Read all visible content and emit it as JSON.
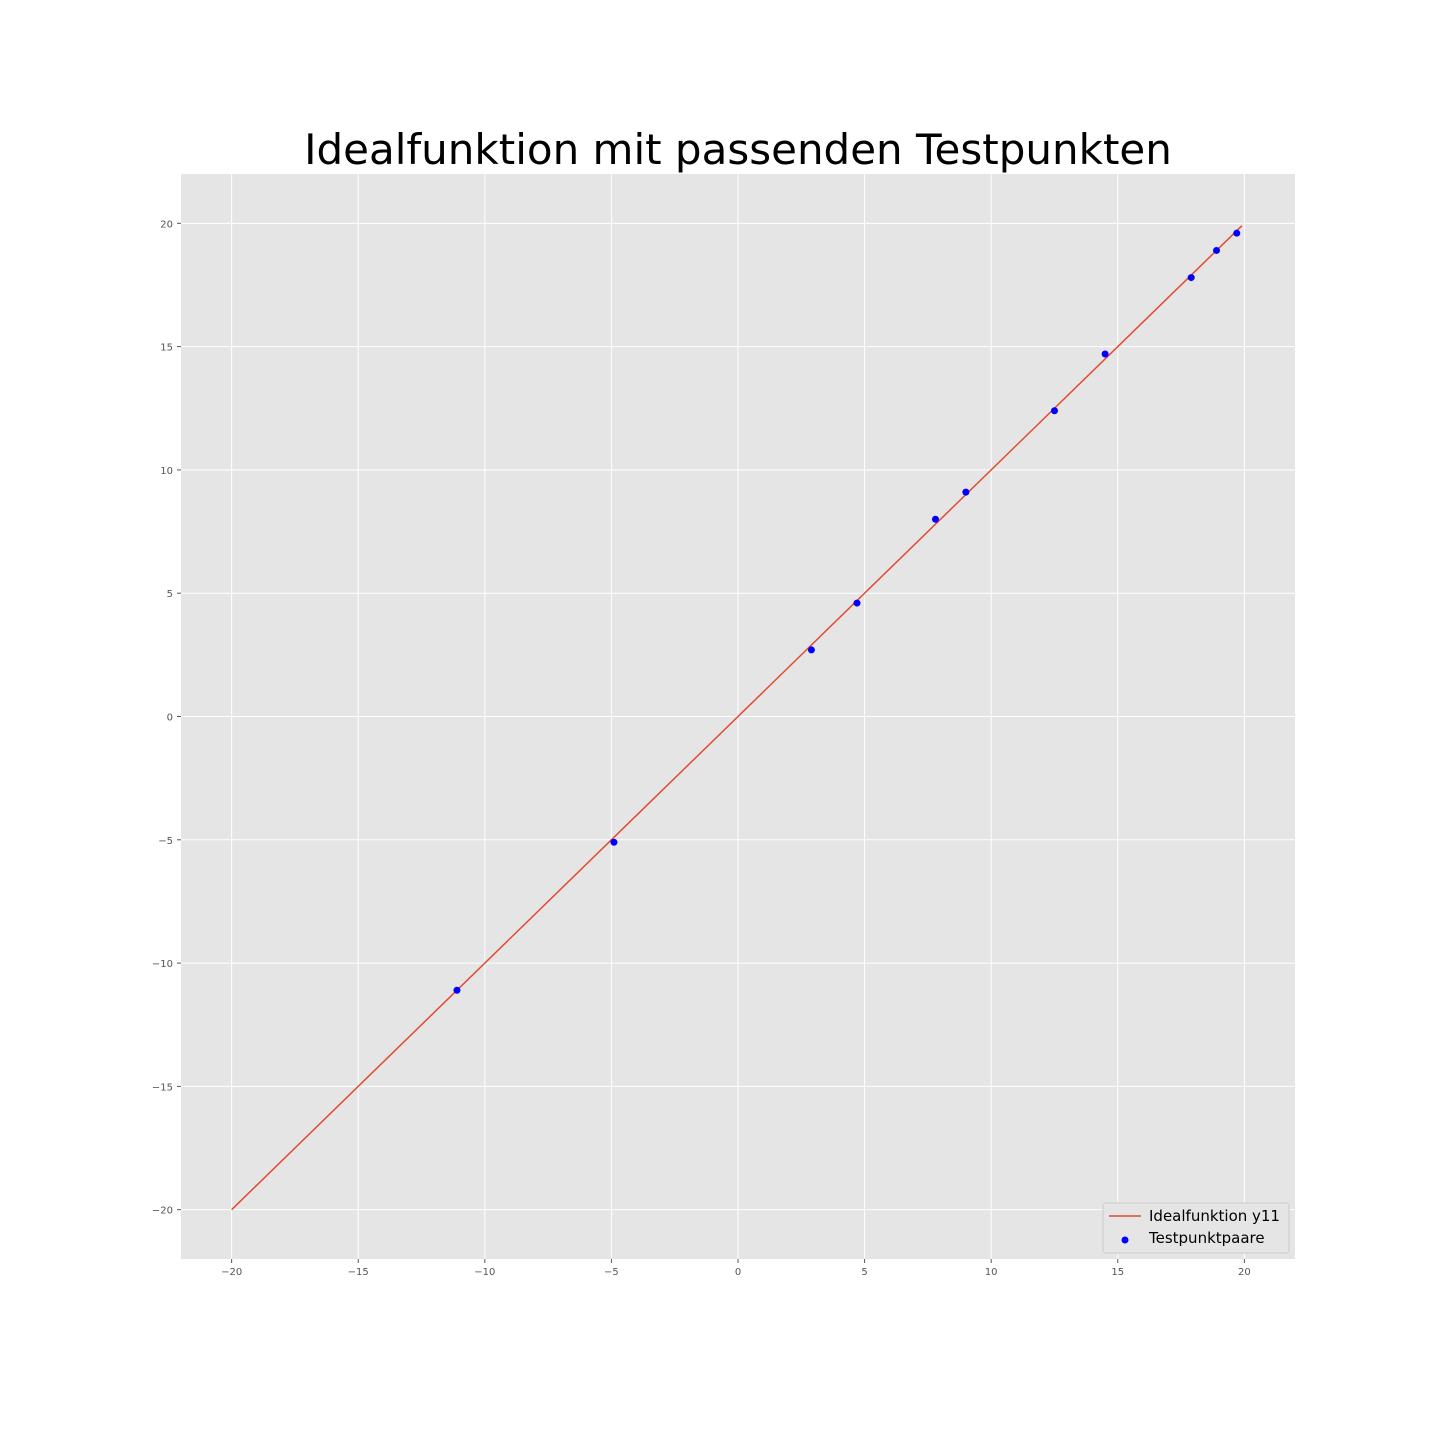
{
  "chart_data": {
    "type": "scatter",
    "title": "Idealfunktion mit passenden Testpunkten",
    "xlabel": "",
    "ylabel": "",
    "xlim": [
      -22,
      22
    ],
    "ylim": [
      -22,
      22
    ],
    "xticks": [
      -20,
      -15,
      -10,
      -5,
      0,
      5,
      10,
      15,
      20
    ],
    "yticks": [
      -20,
      -15,
      -10,
      -5,
      0,
      5,
      10,
      15,
      20
    ],
    "xtick_labels": [
      "−20",
      "−15",
      "−10",
      "−5",
      "0",
      "5",
      "10",
      "15",
      "20"
    ],
    "ytick_labels": [
      "−20",
      "−15",
      "−10",
      "−5",
      "0",
      "5",
      "10",
      "15",
      "20"
    ],
    "grid": true,
    "legend_position": "lower-right",
    "series": [
      {
        "name": "Idealfunktion y11",
        "kind": "line",
        "color": "#e24a33",
        "x": [
          -20,
          19.9
        ],
        "y": [
          -20,
          19.9
        ]
      },
      {
        "name": "Testpunktpaare",
        "kind": "scatter",
        "color": "#0000ff",
        "x": [
          -11.1,
          -4.9,
          2.9,
          4.7,
          7.8,
          9.0,
          12.5,
          14.5,
          17.9,
          18.9,
          19.7
        ],
        "y": [
          -11.1,
          -5.1,
          2.7,
          4.6,
          8.0,
          9.1,
          12.4,
          14.7,
          17.8,
          18.9,
          19.6
        ]
      }
    ]
  },
  "colors": {
    "plot_background": "#e5e5e5",
    "grid": "#ffffff",
    "tick": "#555555"
  }
}
